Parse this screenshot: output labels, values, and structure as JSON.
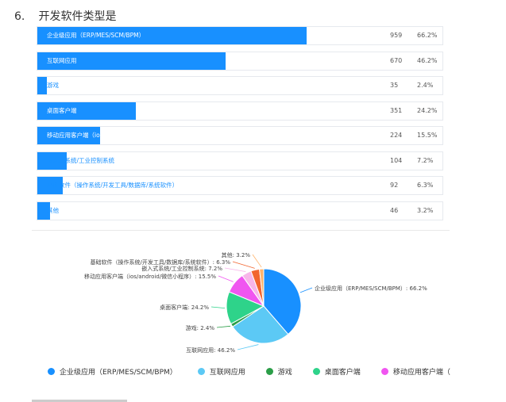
{
  "question": {
    "number": "6.",
    "title": "开发软件类型是"
  },
  "chart_data": {
    "type": "bar+pie",
    "categories": [
      "企业级应用（ERP/MES/SCM/BPM）",
      "互联网应用",
      "游戏",
      "桌面客户端",
      "移动应用客户端（ios/android/微信小程序）",
      "嵌入式系统/工业控制系统",
      "基础软件（操作系统/开发工具/数据库/系统软件）",
      "其他"
    ],
    "counts": [
      959,
      670,
      35,
      351,
      224,
      104,
      92,
      46
    ],
    "percent_labels": [
      "66.2%",
      "46.2%",
      "2.4%",
      "24.2%",
      "15.5%",
      "7.2%",
      "6.3%",
      "3.2%"
    ],
    "percents": [
      66.2,
      46.2,
      2.4,
      24.2,
      15.5,
      7.2,
      6.3,
      3.2
    ],
    "pie_labels": [
      "企业级应用（ERP/MES/SCM/BPM）: 66.2%",
      "互联网应用: 46.2%",
      "游戏: 2.4%",
      "桌面客户端: 24.2%",
      "移动应用客户端（ios/android/微信小程序）: 15.5%",
      "嵌入式系统/工业控制系统: 7.2%",
      "基础软件（操作系统/开发工具/数据库/系统软件）: 6.3%",
      "其他: 3.2%"
    ],
    "colors": [
      "#1890ff",
      "#5cc9f5",
      "#2b9e48",
      "#2ed38a",
      "#f055f0",
      "#f7b6e9",
      "#f2652f",
      "#ffb36b"
    ]
  },
  "legend": [
    {
      "label": "企业级应用（ERP/MES/SCM/BPM）",
      "color": "#1890ff"
    },
    {
      "label": "互联网应用",
      "color": "#5cc9f5"
    },
    {
      "label": "游戏",
      "color": "#2b9e48"
    },
    {
      "label": "桌面客户端",
      "color": "#2ed38a"
    },
    {
      "label": "移动应用客户端（",
      "color": "#f055f0"
    }
  ]
}
